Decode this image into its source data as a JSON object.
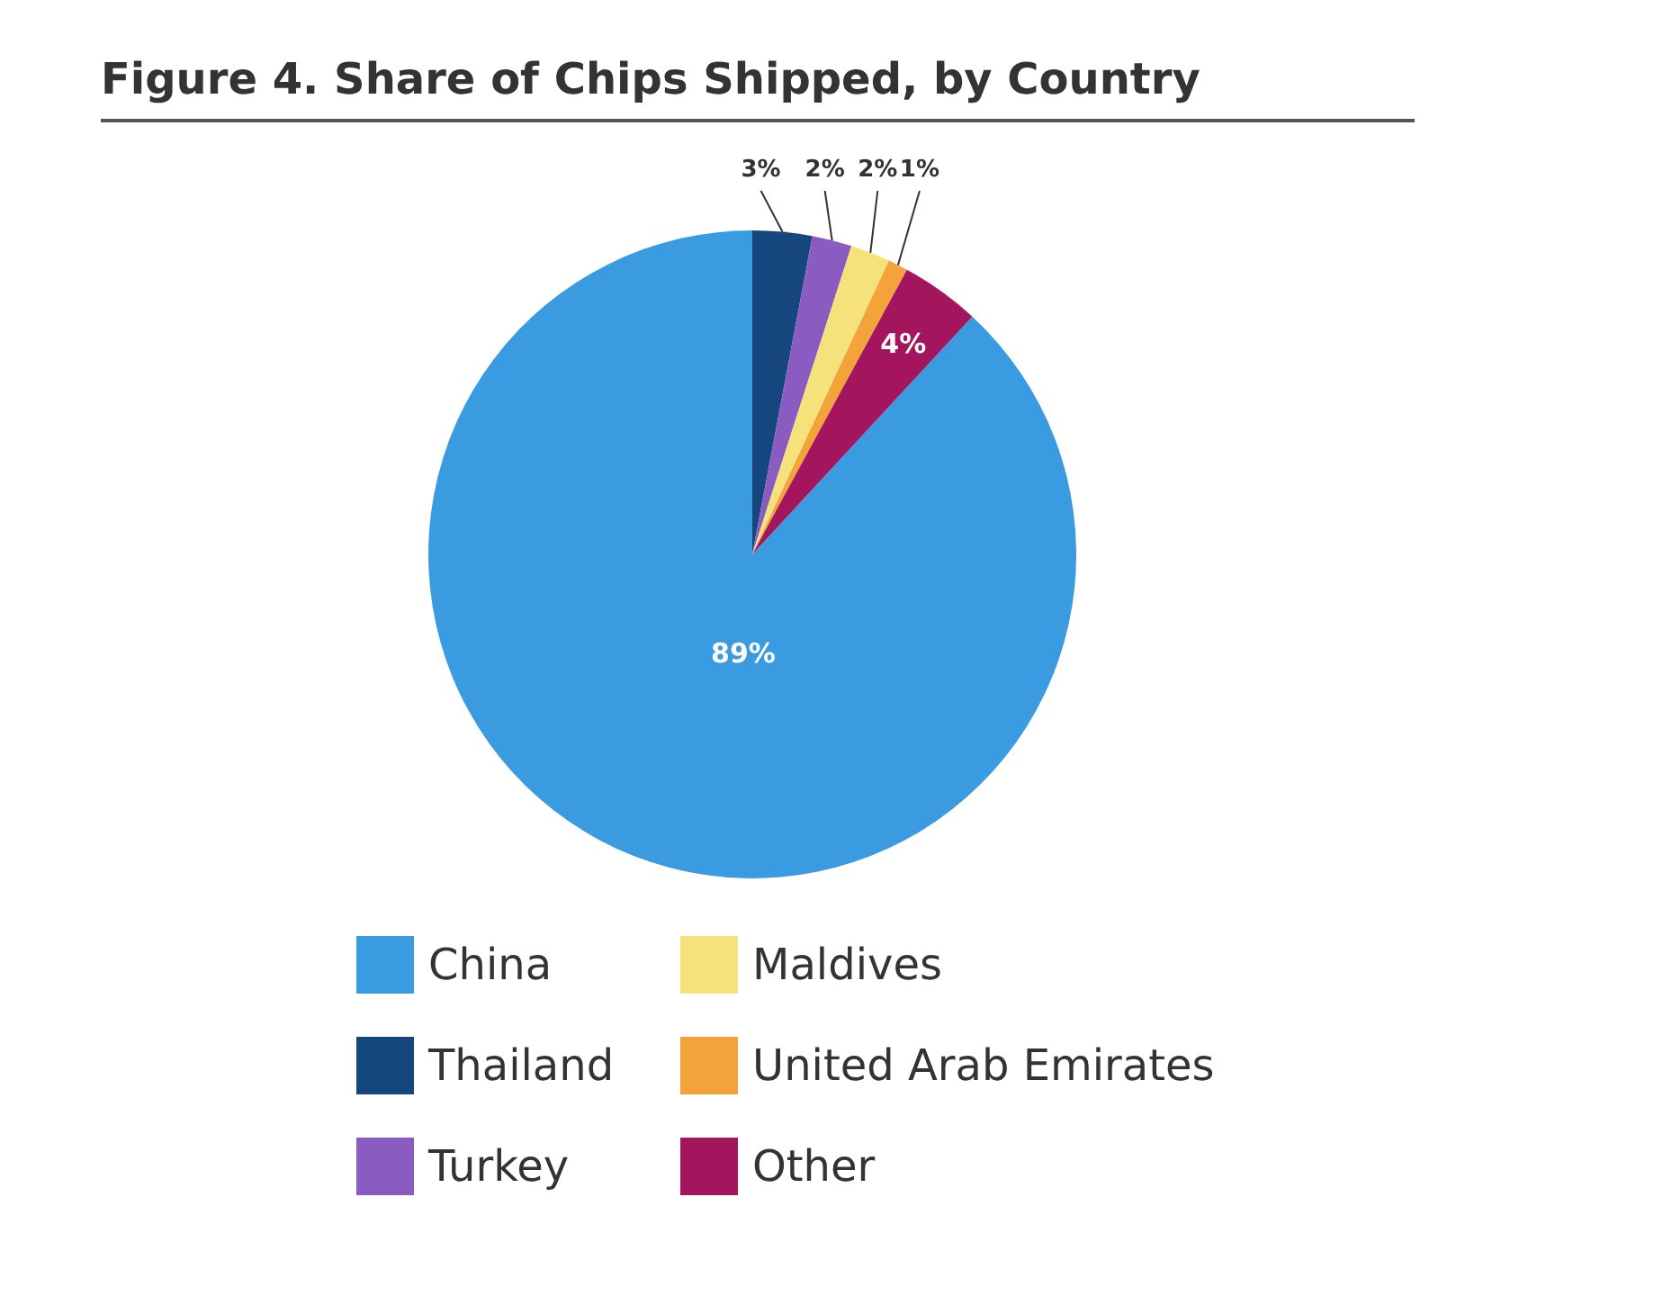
{
  "chart_data": {
    "type": "pie",
    "title": "Figure 4. Share of Chips Shipped, by Country",
    "categories": [
      "China",
      "Thailand",
      "Turkey",
      "Maldives",
      "United Arab Emirates",
      "Other"
    ],
    "values": [
      89,
      3,
      2,
      2,
      1,
      4
    ],
    "colors": [
      "#3b9be1",
      "#16467e",
      "#8a5cc2",
      "#f6e27a",
      "#f2a33a",
      "#a3165e"
    ],
    "value_labels": [
      "89%",
      "3%",
      "2%",
      "2%",
      "1%",
      "4%"
    ],
    "legend": "bottom"
  }
}
